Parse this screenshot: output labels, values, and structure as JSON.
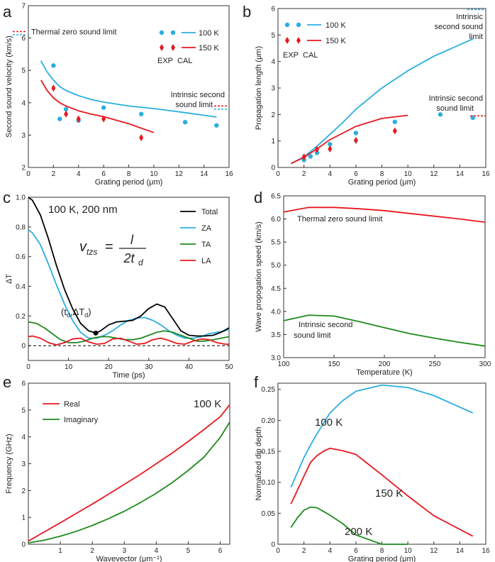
{
  "colors": {
    "blue": "#29aee0",
    "red": "#e8171f",
    "green": "#1e8a1e",
    "black": "#000000"
  },
  "chart_data": [
    {
      "panel": "a",
      "type": "line+scatter",
      "xlabel": "Grating period (μm)",
      "ylabel": "Second sound velocity (km/s)",
      "xlim": [
        0,
        16
      ],
      "ylim": [
        2,
        7
      ],
      "xticks": [
        0,
        2,
        4,
        6,
        8,
        10,
        12,
        14,
        16
      ],
      "yticks": [
        2,
        3,
        4,
        5,
        6,
        7
      ],
      "legend": {
        "rows": [
          "100 K",
          "150 K"
        ],
        "cols": [
          "EXP",
          "CAL"
        ],
        "position": "top-right"
      },
      "annotations": [
        "Thermal zero sound limit",
        "Intrinsic second sound limit"
      ],
      "limits": [
        {
          "label": "Thermal zero sound limit",
          "y100": 6.1,
          "y150": 6.2,
          "side": "left"
        },
        {
          "label": "Intrinsic second sound limit",
          "y100": 3.8,
          "y150": 3.9,
          "side": "right"
        }
      ],
      "series": [
        {
          "name": "100 K CAL",
          "kind": "line",
          "color": "blue",
          "x": [
            1,
            1.5,
            2,
            2.5,
            3,
            4,
            5,
            6,
            8,
            10,
            12,
            15
          ],
          "y": [
            5.3,
            4.95,
            4.7,
            4.5,
            4.38,
            4.22,
            4.1,
            4.02,
            3.9,
            3.82,
            3.72,
            3.56
          ]
        },
        {
          "name": "150 K CAL",
          "kind": "line",
          "color": "red",
          "x": [
            1,
            1.5,
            2,
            2.5,
            3,
            4,
            5,
            6,
            8,
            10
          ],
          "y": [
            4.7,
            4.38,
            4.15,
            4.0,
            3.9,
            3.75,
            3.65,
            3.57,
            3.35,
            3.08
          ]
        },
        {
          "name": "100 K EXP",
          "kind": "circle",
          "color": "blue",
          "x": [
            2,
            2.5,
            3,
            4,
            6,
            9,
            12.5,
            15
          ],
          "y": [
            5.15,
            3.5,
            3.8,
            3.45,
            3.85,
            3.65,
            3.4,
            3.3
          ]
        },
        {
          "name": "150 K EXP",
          "kind": "diamond",
          "color": "red",
          "x": [
            2,
            3,
            4,
            6,
            9
          ],
          "y": [
            4.45,
            3.65,
            3.5,
            3.5,
            2.92
          ]
        }
      ]
    },
    {
      "panel": "b",
      "type": "line+scatter",
      "xlabel": "Grating period (μm)",
      "ylabel": "Propagation length (μm)",
      "xlim": [
        0,
        16
      ],
      "ylim": [
        0,
        6
      ],
      "xticks": [
        0,
        2,
        4,
        6,
        8,
        10,
        12,
        14,
        16
      ],
      "yticks": [
        0,
        1,
        2,
        3,
        4,
        5,
        6
      ],
      "legend": {
        "rows": [
          "100 K",
          "150 K"
        ],
        "cols": [
          "EXP",
          "CAL"
        ],
        "position": "top-left"
      },
      "annotations": [
        "Intrinsic second sound limit",
        "Intrinsic second sound limit"
      ],
      "limits": [
        {
          "label": "Intrinsic second sound limit",
          "y": 6.0,
          "color": "blue"
        },
        {
          "label": "Intrinsic second sound limit",
          "y": 1.95,
          "color": "red"
        }
      ],
      "series": [
        {
          "name": "100 K CAL",
          "kind": "line",
          "color": "blue",
          "x": [
            1,
            2,
            3,
            4,
            5,
            6,
            8,
            10,
            12,
            15
          ],
          "y": [
            0.15,
            0.4,
            0.8,
            1.25,
            1.7,
            2.2,
            3.0,
            3.65,
            4.2,
            4.85
          ]
        },
        {
          "name": "150 K CAL",
          "kind": "line",
          "color": "red",
          "x": [
            1,
            2,
            3,
            4,
            5,
            6,
            8,
            10
          ],
          "y": [
            0.15,
            0.38,
            0.7,
            1.05,
            1.3,
            1.55,
            1.85,
            1.97
          ]
        },
        {
          "name": "100 K EXP",
          "kind": "circle",
          "color": "blue",
          "x": [
            2,
            2.5,
            3,
            4,
            6,
            9,
            12.5,
            15
          ],
          "y": [
            0.28,
            0.42,
            0.55,
            0.88,
            1.3,
            1.72,
            2.0,
            1.88
          ]
        },
        {
          "name": "150 K EXP",
          "kind": "diamond",
          "color": "red",
          "x": [
            2,
            3,
            4,
            6,
            9
          ],
          "y": [
            0.4,
            0.68,
            0.7,
            1.02,
            1.38
          ]
        }
      ]
    },
    {
      "panel": "c",
      "type": "line",
      "title": "100 K, 200 nm",
      "xlabel": "Time (ps)",
      "ylabel": "ΔT",
      "xlim": [
        0,
        50
      ],
      "ylim": [
        -0.1,
        1.0
      ],
      "xticks": [
        0,
        10,
        20,
        30,
        40,
        50
      ],
      "yticks": [
        0,
        0.2,
        0.4,
        0.6,
        0.8,
        1
      ],
      "legend_position": "top-right",
      "formula": {
        "lhs": "v",
        "sub": "tzs",
        "num": "l",
        "den": "2t",
        "den_sub": "d"
      },
      "point_label": {
        "open": "(t",
        "sub1": "d",
        "mid": ",ΔT",
        "sub2": "d",
        "close": ")",
        "x": 16.8,
        "y": 0.085
      },
      "series": [
        {
          "name": "Total",
          "color": "black",
          "x": [
            0,
            1,
            3,
            5,
            7,
            9,
            11,
            13,
            15,
            16.8,
            18,
            20,
            22,
            24,
            26,
            28,
            30,
            32,
            34,
            36,
            38,
            40,
            42,
            44,
            46,
            48,
            50
          ],
          "y": [
            1.0,
            0.98,
            0.88,
            0.72,
            0.54,
            0.38,
            0.25,
            0.15,
            0.1,
            0.085,
            0.1,
            0.14,
            0.16,
            0.165,
            0.17,
            0.2,
            0.25,
            0.28,
            0.26,
            0.18,
            0.1,
            0.07,
            0.065,
            0.065,
            0.07,
            0.09,
            0.12
          ]
        },
        {
          "name": "ZA",
          "color": "blue",
          "x": [
            0,
            1,
            3,
            5,
            7,
            9,
            11,
            13,
            15,
            17,
            19,
            21,
            23,
            25,
            27,
            29,
            31,
            33,
            35,
            37,
            39,
            41,
            43,
            45,
            47,
            49,
            50
          ],
          "y": [
            0.78,
            0.76,
            0.68,
            0.55,
            0.41,
            0.28,
            0.17,
            0.09,
            0.05,
            0.05,
            0.07,
            0.1,
            0.14,
            0.17,
            0.185,
            0.19,
            0.17,
            0.14,
            0.1,
            0.07,
            0.05,
            0.05,
            0.06,
            0.08,
            0.09,
            0.1,
            0.11
          ]
        },
        {
          "name": "TA",
          "color": "green",
          "x": [
            0,
            2,
            4,
            6,
            8,
            10,
            12,
            14,
            16,
            18,
            20,
            22,
            24,
            26,
            28,
            30,
            32,
            34,
            36,
            38,
            40,
            42,
            44,
            46,
            48,
            50
          ],
          "y": [
            0.16,
            0.15,
            0.12,
            0.08,
            0.04,
            0.02,
            0.02,
            0.03,
            0.05,
            0.06,
            0.06,
            0.05,
            0.04,
            0.04,
            0.05,
            0.07,
            0.09,
            0.1,
            0.09,
            0.07,
            0.05,
            0.03,
            0.03,
            0.04,
            0.05,
            0.06
          ]
        },
        {
          "name": "LA",
          "color": "red",
          "x": [
            0,
            1,
            3,
            5,
            7,
            9,
            11,
            13,
            15,
            17,
            19,
            21,
            23,
            25,
            27,
            29,
            31,
            33,
            35,
            37,
            39,
            41,
            43,
            45,
            47,
            49,
            50
          ],
          "y": [
            0.06,
            0.065,
            0.05,
            0.02,
            0.005,
            0.02,
            0.045,
            0.05,
            0.025,
            0.01,
            0.015,
            0.045,
            0.05,
            0.03,
            0.01,
            0.015,
            0.04,
            0.05,
            0.035,
            0.015,
            0.01,
            0.03,
            0.045,
            0.04,
            0.02,
            0.01,
            0.01
          ]
        }
      ],
      "baseline_y": 0
    },
    {
      "panel": "d",
      "type": "line",
      "xlabel": "Temperature (K)",
      "ylabel": "Wave propogation speed (km/s)",
      "xlim": [
        100,
        300
      ],
      "ylim": [
        3.0,
        6.5
      ],
      "xticks": [
        100,
        150,
        200,
        250,
        300
      ],
      "yticks": [
        3.0,
        3.5,
        4.0,
        4.5,
        5.0,
        5.5,
        6.0,
        6.5
      ],
      "annotations": [
        "Thermal zero sound limit",
        "Intrinsic second sound limit"
      ],
      "series": [
        {
          "name": "Thermal zero sound limit",
          "color": "red",
          "x": [
            100,
            125,
            150,
            175,
            200,
            225,
            250,
            275,
            300
          ],
          "y": [
            6.15,
            6.25,
            6.25,
            6.22,
            6.18,
            6.12,
            6.06,
            6.0,
            5.93
          ]
        },
        {
          "name": "Intrinsic second sound limit",
          "color": "green",
          "x": [
            100,
            125,
            150,
            175,
            200,
            225,
            250,
            275,
            300
          ],
          "y": [
            3.8,
            3.92,
            3.9,
            3.78,
            3.65,
            3.52,
            3.42,
            3.33,
            3.25
          ]
        }
      ]
    },
    {
      "panel": "e",
      "type": "line",
      "title": "100 K",
      "xlabel": "Wavevector (μm⁻¹)",
      "ylabel": "Frequency (GHz)",
      "xlim": [
        0,
        6.3
      ],
      "ylim": [
        0,
        6
      ],
      "xticks": [
        1,
        2,
        3,
        4,
        5,
        6
      ],
      "yticks": [
        0,
        1,
        2,
        3,
        4,
        5,
        6
      ],
      "legend_position": "top-left",
      "series": [
        {
          "name": "Real",
          "color": "red",
          "x": [
            0,
            0.5,
            1,
            1.5,
            2,
            2.5,
            3,
            3.5,
            4,
            4.5,
            5,
            5.5,
            6,
            6.3
          ],
          "y": [
            0.12,
            0.46,
            0.8,
            1.15,
            1.5,
            1.86,
            2.23,
            2.6,
            3.0,
            3.4,
            3.83,
            4.28,
            4.75,
            5.2
          ]
        },
        {
          "name": "Imaginary",
          "color": "green",
          "x": [
            0,
            0.5,
            1,
            1.5,
            2,
            2.5,
            3,
            3.5,
            4,
            4.5,
            5,
            5.5,
            6,
            6.3
          ],
          "y": [
            0.05,
            0.15,
            0.3,
            0.48,
            0.7,
            0.95,
            1.23,
            1.55,
            1.9,
            2.3,
            2.75,
            3.25,
            3.98,
            4.55
          ]
        }
      ]
    },
    {
      "panel": "f",
      "type": "line",
      "xlabel": "Grating period (μm)",
      "ylabel": "Normalized dip depth",
      "xlim": [
        0,
        16
      ],
      "ylim": [
        0,
        0.26
      ],
      "xticks": [
        0,
        2,
        4,
        6,
        8,
        10,
        12,
        14,
        16
      ],
      "yticks": [
        0,
        0.05,
        0.1,
        0.15,
        0.2,
        0.25
      ],
      "series": [
        {
          "name": "100 K",
          "color": "blue",
          "x": [
            1,
            2,
            2.5,
            3,
            3.5,
            4,
            5,
            6,
            8,
            10,
            12,
            15
          ],
          "y": [
            0.092,
            0.14,
            0.16,
            0.178,
            0.195,
            0.212,
            0.232,
            0.247,
            0.257,
            0.253,
            0.24,
            0.212
          ]
        },
        {
          "name": "150 K",
          "color": "red",
          "x": [
            1,
            2,
            2.5,
            3,
            3.5,
            4,
            5,
            6,
            8,
            10,
            12,
            15
          ],
          "y": [
            0.065,
            0.11,
            0.132,
            0.143,
            0.15,
            0.155,
            0.151,
            0.145,
            0.112,
            0.078,
            0.046,
            0.013
          ]
        },
        {
          "name": "200 K",
          "color": "green",
          "x": [
            1,
            1.5,
            2,
            2.5,
            3,
            3.5,
            4,
            5,
            6,
            8,
            10
          ],
          "y": [
            0.027,
            0.043,
            0.055,
            0.06,
            0.059,
            0.053,
            0.047,
            0.033,
            0.015,
            0.0,
            0.0
          ]
        }
      ]
    }
  ]
}
